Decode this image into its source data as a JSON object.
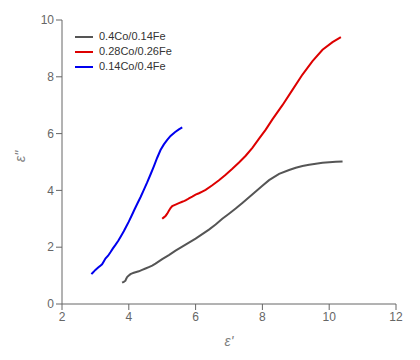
{
  "chart_data": {
    "type": "line",
    "xlabel": "ε'",
    "ylabel": "ε\"",
    "xlim": [
      2,
      12
    ],
    "ylim": [
      0,
      10
    ],
    "xticks": [
      2,
      4,
      6,
      8,
      10,
      12
    ],
    "yticks": [
      0,
      2,
      4,
      6,
      8,
      10
    ],
    "legend": "upper left",
    "series": [
      {
        "name": "0.4Co/0.14Fe",
        "color": "#555555",
        "x": [
          3.8,
          3.85,
          3.9,
          3.92,
          3.95,
          4.0,
          4.05,
          4.1,
          4.15,
          4.2,
          4.3,
          4.4,
          4.5,
          4.6,
          4.7,
          4.8,
          4.9,
          5.0,
          5.1,
          5.2,
          5.4,
          5.6,
          5.8,
          6.0,
          6.2,
          6.4,
          6.6,
          6.8,
          7.0,
          7.2,
          7.4,
          7.6,
          7.8,
          8.0,
          8.2,
          8.5,
          8.8,
          9.0,
          9.2,
          9.4,
          9.6,
          9.8,
          10.0,
          10.2,
          10.4
        ],
        "values": [
          0.75,
          0.78,
          0.82,
          0.88,
          0.95,
          1.0,
          1.05,
          1.08,
          1.1,
          1.12,
          1.15,
          1.2,
          1.25,
          1.3,
          1.35,
          1.42,
          1.5,
          1.58,
          1.65,
          1.72,
          1.88,
          2.02,
          2.16,
          2.3,
          2.46,
          2.62,
          2.8,
          3.0,
          3.18,
          3.36,
          3.56,
          3.76,
          3.96,
          4.16,
          4.36,
          4.58,
          4.72,
          4.8,
          4.86,
          4.9,
          4.94,
          4.97,
          4.99,
          5.01,
          5.02
        ]
      },
      {
        "name": "0.28Co/0.26Fe",
        "color": "#dd0000",
        "x": [
          5.0,
          5.05,
          5.1,
          5.15,
          5.2,
          5.25,
          5.3,
          5.4,
          5.5,
          5.6,
          5.65,
          5.7,
          5.75,
          5.8,
          5.9,
          6.0,
          6.1,
          6.2,
          6.3,
          6.5,
          6.7,
          6.9,
          7.1,
          7.3,
          7.5,
          7.7,
          7.9,
          8.1,
          8.3,
          8.6,
          8.9,
          9.2,
          9.5,
          9.8,
          10.1,
          10.35
        ],
        "values": [
          3.0,
          3.05,
          3.1,
          3.18,
          3.28,
          3.38,
          3.45,
          3.5,
          3.55,
          3.6,
          3.62,
          3.65,
          3.68,
          3.72,
          3.78,
          3.85,
          3.9,
          3.96,
          4.02,
          4.18,
          4.36,
          4.55,
          4.76,
          4.98,
          5.22,
          5.5,
          5.82,
          6.14,
          6.5,
          7.0,
          7.54,
          8.08,
          8.55,
          8.95,
          9.22,
          9.4
        ]
      },
      {
        "name": "0.14Co/0.4Fe",
        "color": "#0000ee",
        "x": [
          2.88,
          2.92,
          2.96,
          3.0,
          3.05,
          3.1,
          3.15,
          3.2,
          3.25,
          3.3,
          3.38,
          3.45,
          3.52,
          3.6,
          3.68,
          3.76,
          3.85,
          3.92,
          4.0,
          4.08,
          4.16,
          4.25,
          4.35,
          4.45,
          4.55,
          4.65,
          4.75,
          4.85,
          4.95,
          5.05,
          5.15,
          5.25,
          5.38,
          5.5,
          5.6
        ],
        "values": [
          1.05,
          1.1,
          1.15,
          1.2,
          1.25,
          1.3,
          1.35,
          1.4,
          1.5,
          1.6,
          1.7,
          1.82,
          1.95,
          2.08,
          2.22,
          2.38,
          2.56,
          2.72,
          2.9,
          3.1,
          3.3,
          3.52,
          3.76,
          4.02,
          4.28,
          4.56,
          4.85,
          5.15,
          5.42,
          5.62,
          5.78,
          5.92,
          6.05,
          6.15,
          6.22
        ]
      }
    ]
  }
}
